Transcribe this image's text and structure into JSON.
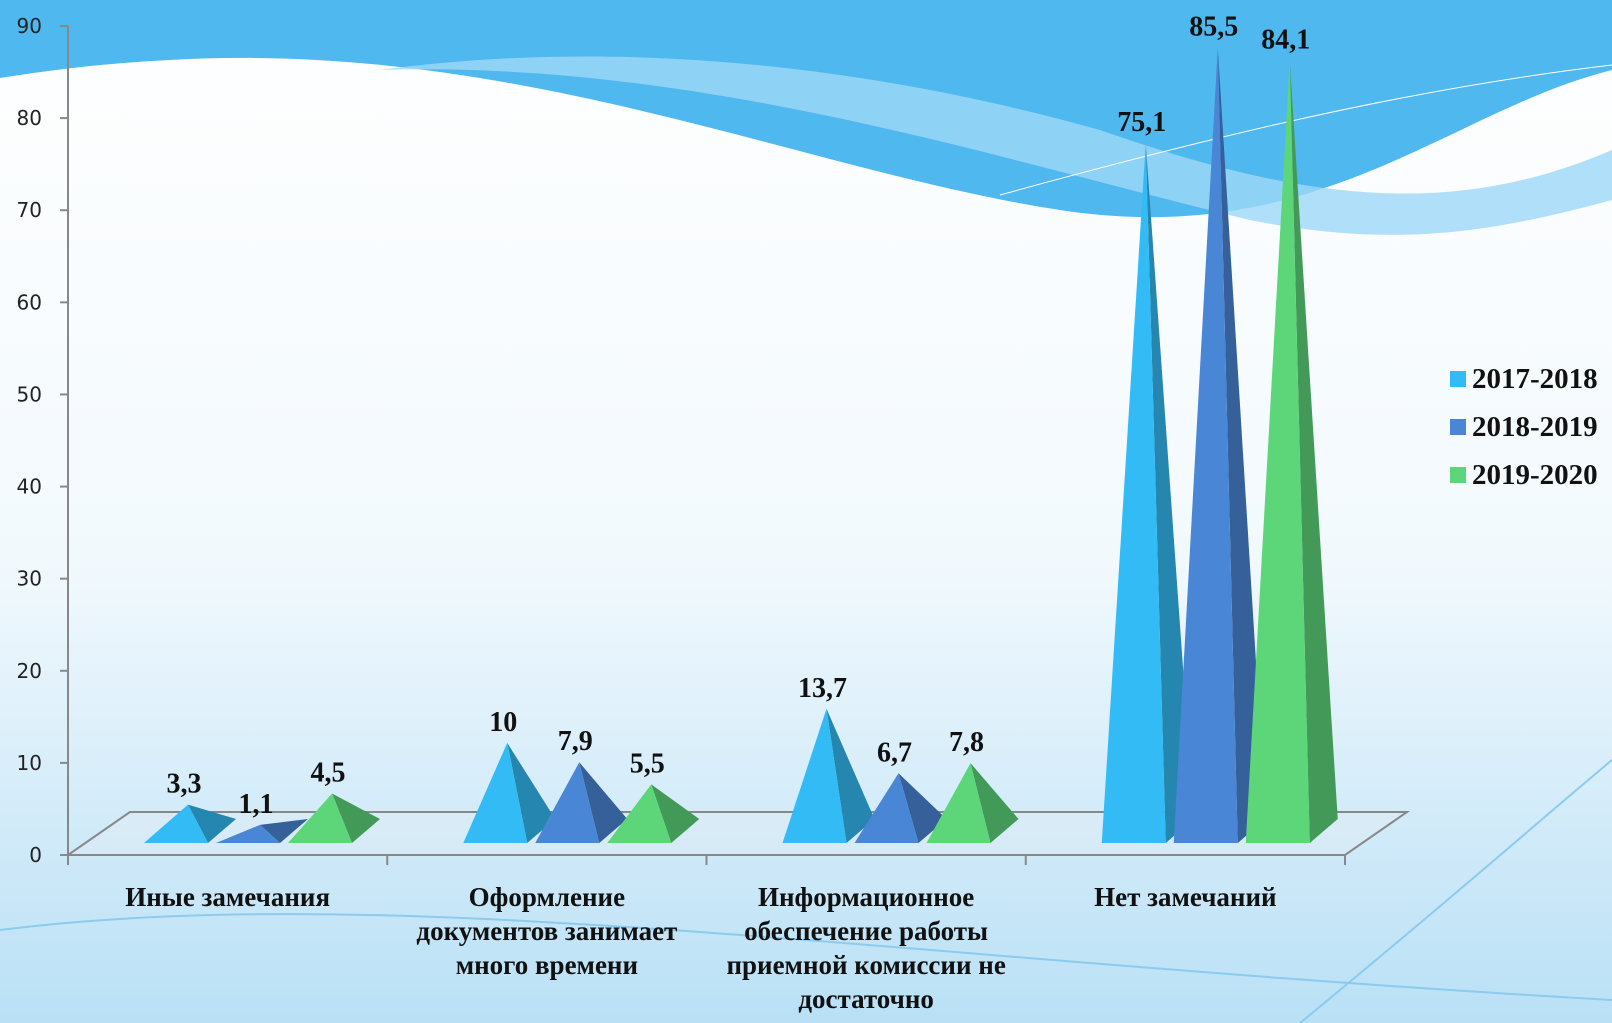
{
  "chart_data": {
    "type": "pyramid",
    "categories": [
      "Иные замечания",
      "Оформление документов занимает много времени",
      "Информационное обеспечение работы приемной комиссии не достаточно",
      "Нет замечаний"
    ],
    "series": [
      {
        "name": "2017-2018",
        "color": "#33bbf5",
        "values": [
          3.3,
          10,
          13.7,
          75.1
        ],
        "value_labels": [
          "3,3",
          "10",
          "13,7",
          "75,1"
        ]
      },
      {
        "name": "2018-2019",
        "color": "#4a86d6",
        "values": [
          1.1,
          7.9,
          6.7,
          85.5
        ],
        "value_labels": [
          "1,1",
          "7,9",
          "6,7",
          "85,5"
        ]
      },
      {
        "name": "2019-2020",
        "color": "#5dd67a",
        "values": [
          4.5,
          5.5,
          7.8,
          84.1
        ],
        "value_labels": [
          "4,5",
          "5,5",
          "7,8",
          "84,1"
        ]
      }
    ],
    "ylim": [
      0,
      90
    ],
    "yticks": [
      0,
      10,
      20,
      30,
      40,
      50,
      60,
      70,
      80,
      90
    ],
    "legend": "right"
  }
}
